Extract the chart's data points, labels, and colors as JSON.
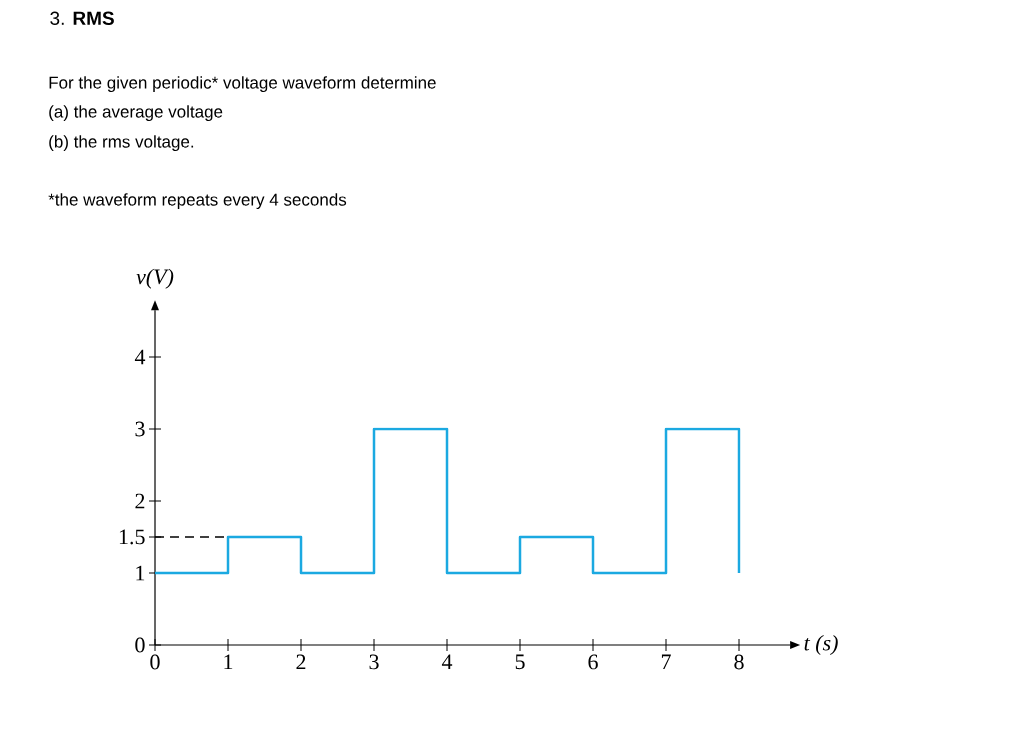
{
  "chart_data": {
    "type": "step",
    "title": "3. **RMS**",
    "annotations": [
      "For the given periodic* voltage waveform determine",
      "(a) the average voltage",
      "(b) the rms voltage.",
      "*the waveform repeats every 4 seconds"
    ],
    "xlabel": "t (s)",
    "ylabel": "v(V)",
    "x": [
      0,
      1,
      2,
      3,
      4,
      5,
      6,
      7,
      8
    ],
    "values": [
      1,
      1.5,
      1,
      3,
      1,
      1.5,
      1,
      3,
      1
    ],
    "color": "#1ba9e1",
    "xlim": [
      0,
      8.7
    ],
    "ylim": [
      0,
      4.65
    ],
    "xticks": [
      0,
      1,
      2,
      3,
      4,
      5,
      6,
      7,
      8
    ],
    "yticks": [
      0,
      1,
      1.5,
      2,
      3,
      4
    ],
    "ref_lines": [
      {
        "axis": "y",
        "value": 1.5,
        "line_style": "dashed",
        "color": "#000000"
      }
    ]
  }
}
